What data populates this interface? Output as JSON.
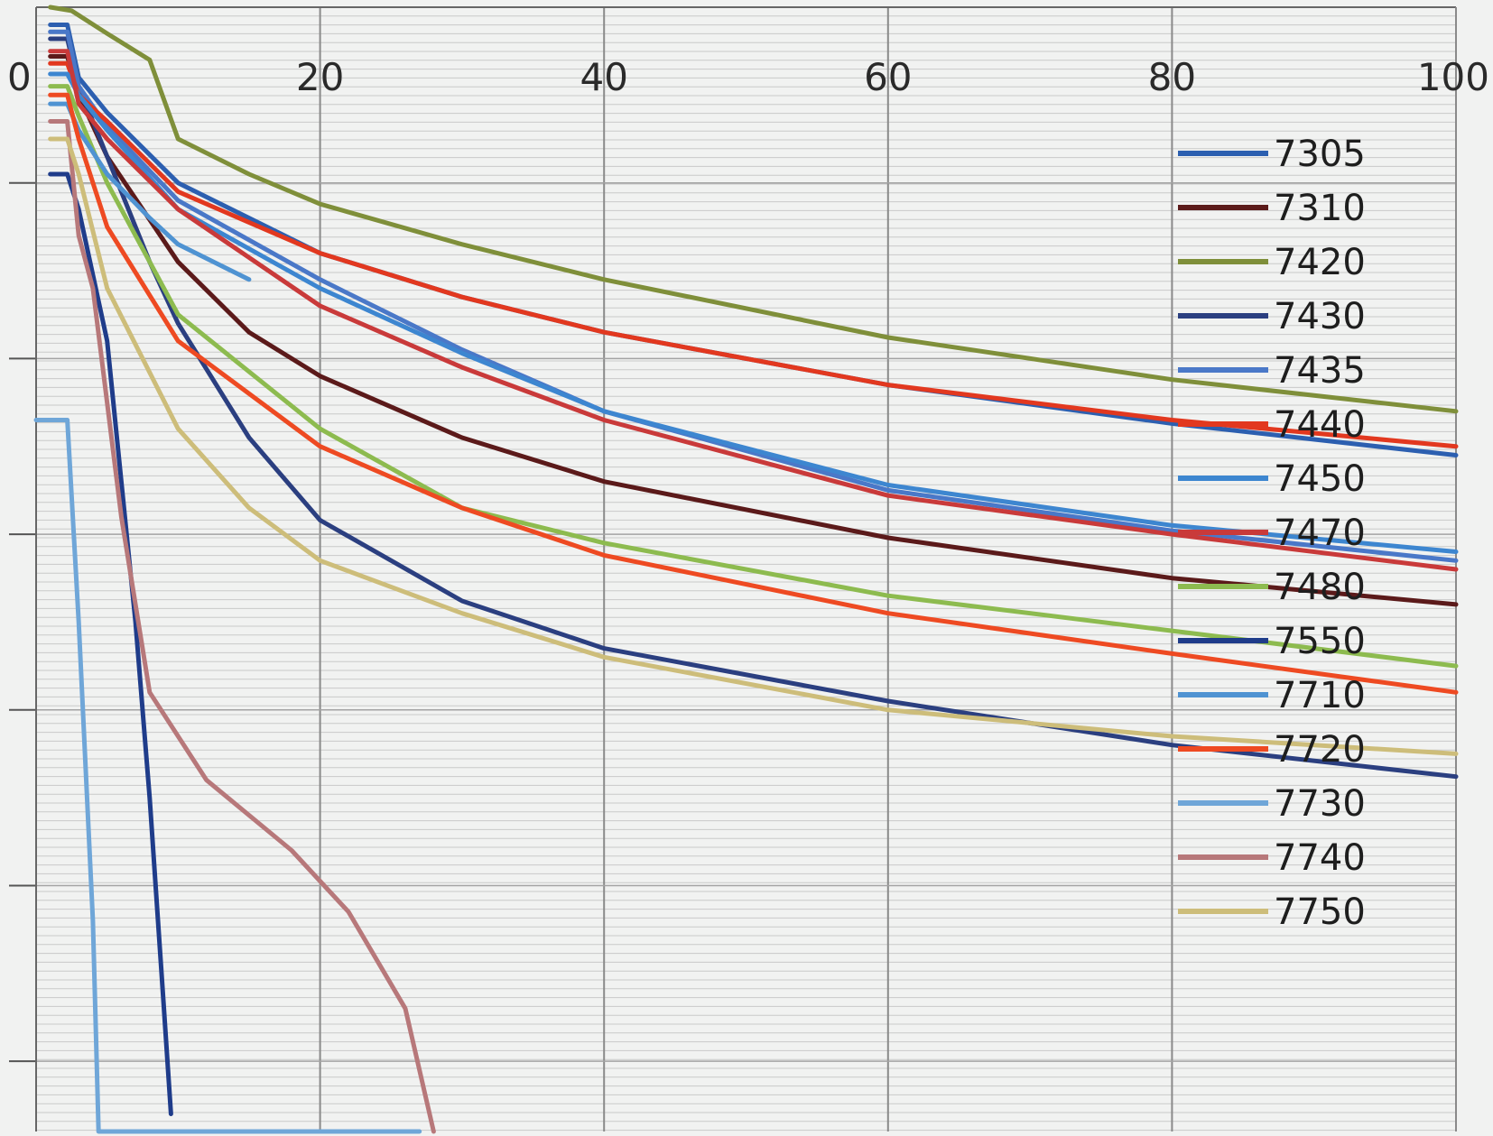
{
  "chart_data": {
    "type": "line",
    "title": "",
    "xlabel": "",
    "ylabel": "",
    "xlim": [
      0,
      100
    ],
    "ylim": [
      0,
      6.4
    ],
    "x_ticks": [
      "0",
      "20",
      "40",
      "60",
      "80",
      "100"
    ],
    "y_direction": "downward",
    "grid": true,
    "legend_position": "right",
    "series": [
      {
        "name": "7305",
        "color": "#2c5fb0",
        "points": [
          [
            1,
            0.1
          ],
          [
            2.2,
            0.1
          ],
          [
            3,
            0.4
          ],
          [
            5,
            0.6
          ],
          [
            10,
            1.0
          ],
          [
            20,
            1.4
          ],
          [
            30,
            1.65
          ],
          [
            40,
            1.85
          ],
          [
            60,
            2.15
          ],
          [
            80,
            2.37
          ],
          [
            100,
            2.55
          ]
        ]
      },
      {
        "name": "7310",
        "color": "#5b1a1a",
        "points": [
          [
            1,
            0.28
          ],
          [
            2.2,
            0.28
          ],
          [
            3,
            0.5
          ],
          [
            5,
            0.85
          ],
          [
            10,
            1.45
          ],
          [
            15,
            1.85
          ],
          [
            20,
            2.1
          ],
          [
            30,
            2.45
          ],
          [
            40,
            2.7
          ],
          [
            60,
            3.02
          ],
          [
            80,
            3.25
          ],
          [
            100,
            3.4
          ]
        ]
      },
      {
        "name": "7420",
        "color": "#7f8f3a",
        "points": [
          [
            1,
            0
          ],
          [
            2.5,
            0.02
          ],
          [
            5,
            0.15
          ],
          [
            8,
            0.3
          ],
          [
            10,
            0.75
          ],
          [
            15,
            0.95
          ],
          [
            20,
            1.12
          ],
          [
            30,
            1.35
          ],
          [
            40,
            1.55
          ],
          [
            60,
            1.88
          ],
          [
            80,
            2.12
          ],
          [
            100,
            2.3
          ]
        ]
      },
      {
        "name": "7430",
        "color": "#2b3f80",
        "points": [
          [
            1,
            0.18
          ],
          [
            2.2,
            0.18
          ],
          [
            3,
            0.45
          ],
          [
            5,
            0.85
          ],
          [
            8,
            1.45
          ],
          [
            10,
            1.8
          ],
          [
            15,
            2.45
          ],
          [
            20,
            2.92
          ],
          [
            30,
            3.38
          ],
          [
            40,
            3.65
          ],
          [
            60,
            3.95
          ],
          [
            80,
            4.2
          ],
          [
            100,
            4.38
          ]
        ]
      },
      {
        "name": "7435",
        "color": "#4a78c8",
        "points": [
          [
            1,
            0.14
          ],
          [
            2.2,
            0.14
          ],
          [
            3,
            0.45
          ],
          [
            5,
            0.68
          ],
          [
            10,
            1.1
          ],
          [
            20,
            1.55
          ],
          [
            30,
            1.95
          ],
          [
            40,
            2.3
          ],
          [
            60,
            2.75
          ],
          [
            80,
            2.98
          ],
          [
            100,
            3.15
          ]
        ]
      },
      {
        "name": "7440",
        "color": "#e2381f",
        "points": [
          [
            1,
            0.32
          ],
          [
            2.2,
            0.32
          ],
          [
            3,
            0.5
          ],
          [
            5,
            0.65
          ],
          [
            10,
            1.05
          ],
          [
            20,
            1.4
          ],
          [
            30,
            1.65
          ],
          [
            40,
            1.85
          ],
          [
            60,
            2.15
          ],
          [
            80,
            2.35
          ],
          [
            100,
            2.5
          ]
        ]
      },
      {
        "name": "7450",
        "color": "#3d86d0",
        "points": [
          [
            1,
            0.38
          ],
          [
            2.2,
            0.38
          ],
          [
            3,
            0.5
          ],
          [
            5,
            0.7
          ],
          [
            10,
            1.15
          ],
          [
            20,
            1.6
          ],
          [
            30,
            1.97
          ],
          [
            40,
            2.3
          ],
          [
            60,
            2.72
          ],
          [
            80,
            2.95
          ],
          [
            100,
            3.1
          ]
        ]
      },
      {
        "name": "7470",
        "color": "#c93a3a",
        "points": [
          [
            1,
            0.25
          ],
          [
            2.2,
            0.25
          ],
          [
            3,
            0.55
          ],
          [
            5,
            0.75
          ],
          [
            10,
            1.15
          ],
          [
            20,
            1.7
          ],
          [
            30,
            2.05
          ],
          [
            40,
            2.35
          ],
          [
            60,
            2.78
          ],
          [
            80,
            3.0
          ],
          [
            100,
            3.2
          ]
        ]
      },
      {
        "name": "7480",
        "color": "#8dbb4f",
        "points": [
          [
            1,
            0.45
          ],
          [
            2.2,
            0.45
          ],
          [
            3,
            0.62
          ],
          [
            5,
            1.0
          ],
          [
            10,
            1.75
          ],
          [
            20,
            2.4
          ],
          [
            30,
            2.85
          ],
          [
            40,
            3.05
          ],
          [
            60,
            3.35
          ],
          [
            80,
            3.55
          ],
          [
            100,
            3.75
          ]
        ]
      },
      {
        "name": "7550",
        "color": "#1f3c8a",
        "points": [
          [
            1,
            0.95
          ],
          [
            2.2,
            0.95
          ],
          [
            3,
            1.15
          ],
          [
            5,
            1.9
          ],
          [
            7,
            3.5
          ],
          [
            8,
            4.5
          ],
          [
            9,
            5.7
          ],
          [
            9.5,
            6.3
          ]
        ]
      },
      {
        "name": "7710",
        "color": "#4f93d2",
        "points": [
          [
            1,
            0.55
          ],
          [
            2.2,
            0.55
          ],
          [
            3,
            0.7
          ],
          [
            5,
            0.95
          ],
          [
            8,
            1.2
          ],
          [
            10,
            1.35
          ],
          [
            15,
            1.55
          ]
        ]
      },
      {
        "name": "7720",
        "color": "#ee4a22",
        "points": [
          [
            1,
            0.5
          ],
          [
            2.2,
            0.5
          ],
          [
            3,
            0.75
          ],
          [
            5,
            1.25
          ],
          [
            10,
            1.9
          ],
          [
            20,
            2.5
          ],
          [
            30,
            2.85
          ],
          [
            40,
            3.12
          ],
          [
            60,
            3.45
          ],
          [
            80,
            3.68
          ],
          [
            100,
            3.9
          ]
        ]
      },
      {
        "name": "7730",
        "color": "#6fa6d8",
        "points": [
          [
            0,
            2.35
          ],
          [
            2.2,
            2.35
          ],
          [
            3,
            3.5
          ],
          [
            4,
            5.2
          ],
          [
            4.4,
            6.4
          ],
          [
            27,
            6.4
          ]
        ]
      },
      {
        "name": "7740",
        "color": "#b7787a",
        "points": [
          [
            1,
            0.65
          ],
          [
            2.2,
            0.65
          ],
          [
            3,
            1.3
          ],
          [
            4,
            1.6
          ],
          [
            6,
            2.9
          ],
          [
            8,
            3.9
          ],
          [
            12,
            4.4
          ],
          [
            18,
            4.8
          ],
          [
            22,
            5.15
          ],
          [
            26,
            5.7
          ],
          [
            28,
            6.4
          ]
        ]
      },
      {
        "name": "7750",
        "color": "#cdbd7a",
        "points": [
          [
            1,
            0.75
          ],
          [
            2.2,
            0.75
          ],
          [
            3,
            0.95
          ],
          [
            5,
            1.6
          ],
          [
            10,
            2.4
          ],
          [
            15,
            2.85
          ],
          [
            20,
            3.15
          ],
          [
            30,
            3.45
          ],
          [
            40,
            3.7
          ],
          [
            60,
            4.0
          ],
          [
            80,
            4.15
          ],
          [
            100,
            4.25
          ]
        ]
      }
    ]
  }
}
